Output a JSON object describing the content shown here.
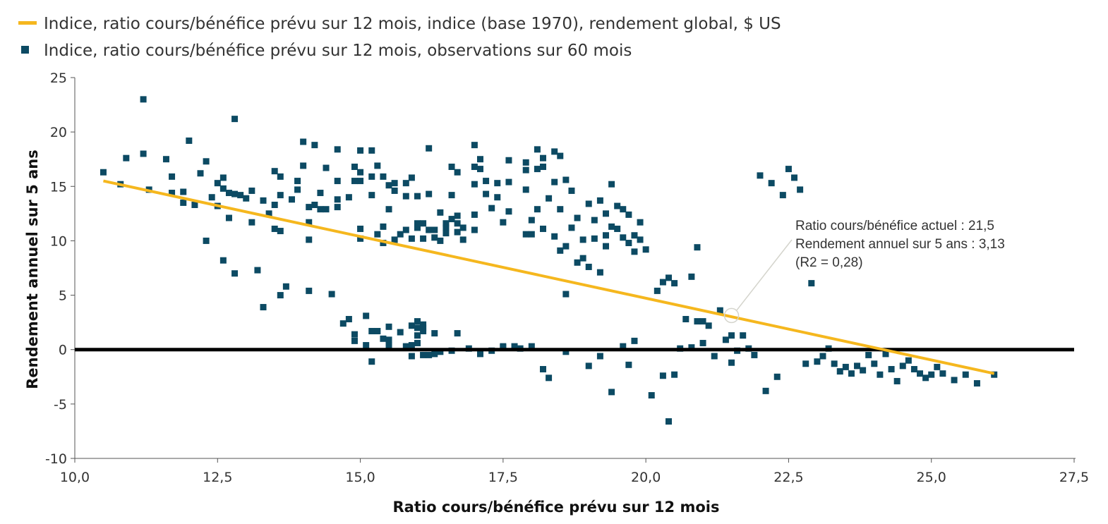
{
  "legend": {
    "line_label": "Indice, ratio cours/bénéfice prévu sur 12 mois, indice (base 1970), rendement global, $ US",
    "scatter_label": "Indice, ratio cours/bénéfice prévu sur 12 mois, observations sur 60 mois"
  },
  "annotation": {
    "line1": "Ratio cours/bénéfice actuel : 21,5",
    "line2": "Rendement annuel sur 5 ans : 3,13",
    "line3": "(R2 = 0,28)"
  },
  "colors": {
    "trend_line": "#F5B71E",
    "points": "#0C4A63",
    "zero_line": "#000000",
    "annotation_marker": "#d4d4cc"
  },
  "chart_data": {
    "type": "scatter",
    "xlabel": "Ratio cours/bénéfice prévu sur 12 mois",
    "ylabel": "Rendement annuel sur 5 ans",
    "xlim": [
      10,
      27.5
    ],
    "ylim": [
      -10,
      25
    ],
    "x_ticks": [
      {
        "value": 10,
        "label": "10,0"
      },
      {
        "value": 12.5,
        "label": "12,5"
      },
      {
        "value": 15,
        "label": "15,0"
      },
      {
        "value": 17.5,
        "label": "17,5"
      },
      {
        "value": 20,
        "label": "20,0"
      },
      {
        "value": 22.5,
        "label": "22,5"
      },
      {
        "value": 25,
        "label": "25,0"
      },
      {
        "value": 27.5,
        "label": "27,5"
      }
    ],
    "y_ticks": [
      {
        "value": 25,
        "label": "25"
      },
      {
        "value": 20,
        "label": "20"
      },
      {
        "value": 15,
        "label": "15"
      },
      {
        "value": 10,
        "label": "10"
      },
      {
        "value": 5,
        "label": "5"
      },
      {
        "value": 0,
        "label": "0"
      },
      {
        "value": -5,
        "label": "-5"
      },
      {
        "value": -10,
        "label": "-10"
      }
    ],
    "grid": false,
    "legend_position": "top-left",
    "reference_line_y": 0,
    "trend_line": {
      "x": [
        10.5,
        26.1
      ],
      "y": [
        15.5,
        -2.2
      ]
    },
    "highlight_point": {
      "x": 21.5,
      "y": 3.13
    },
    "points": [
      [
        10.5,
        16.3
      ],
      [
        10.8,
        15.2
      ],
      [
        10.9,
        17.6
      ],
      [
        11.2,
        23.0
      ],
      [
        11.2,
        18.0
      ],
      [
        11.3,
        14.7
      ],
      [
        11.6,
        17.5
      ],
      [
        11.7,
        15.9
      ],
      [
        11.7,
        14.4
      ],
      [
        11.9,
        14.5
      ],
      [
        11.9,
        13.5
      ],
      [
        12.0,
        19.2
      ],
      [
        12.1,
        13.3
      ],
      [
        12.2,
        16.2
      ],
      [
        12.3,
        17.3
      ],
      [
        12.3,
        10.0
      ],
      [
        12.4,
        14.0
      ],
      [
        12.5,
        15.3
      ],
      [
        12.5,
        13.2
      ],
      [
        12.6,
        15.8
      ],
      [
        12.6,
        14.8
      ],
      [
        12.7,
        14.4
      ],
      [
        12.7,
        12.1
      ],
      [
        12.6,
        8.2
      ],
      [
        12.8,
        14.3
      ],
      [
        12.8,
        7.0
      ],
      [
        12.8,
        21.2
      ],
      [
        12.9,
        14.2
      ],
      [
        13.0,
        13.9
      ],
      [
        13.1,
        11.7
      ],
      [
        13.1,
        14.6
      ],
      [
        13.2,
        7.3
      ],
      [
        13.3,
        3.9
      ],
      [
        13.3,
        13.7
      ],
      [
        13.4,
        12.5
      ],
      [
        13.5,
        16.4
      ],
      [
        13.5,
        13.3
      ],
      [
        13.5,
        11.1
      ],
      [
        13.6,
        15.9
      ],
      [
        13.6,
        14.2
      ],
      [
        13.6,
        10.9
      ],
      [
        13.6,
        5.0
      ],
      [
        13.7,
        5.8
      ],
      [
        13.8,
        13.8
      ],
      [
        13.9,
        15.5
      ],
      [
        13.9,
        14.7
      ],
      [
        14.0,
        19.1
      ],
      [
        14.0,
        16.9
      ],
      [
        14.1,
        13.1
      ],
      [
        14.1,
        11.7
      ],
      [
        14.1,
        10.1
      ],
      [
        14.1,
        5.4
      ],
      [
        14.2,
        18.8
      ],
      [
        14.2,
        13.3
      ],
      [
        14.3,
        14.4
      ],
      [
        14.3,
        12.9
      ],
      [
        14.4,
        16.7
      ],
      [
        14.4,
        12.9
      ],
      [
        14.5,
        5.1
      ],
      [
        14.6,
        18.4
      ],
      [
        14.6,
        15.5
      ],
      [
        14.6,
        13.8
      ],
      [
        14.6,
        13.1
      ],
      [
        14.7,
        2.4
      ],
      [
        14.8,
        14.0
      ],
      [
        14.8,
        2.8
      ],
      [
        14.9,
        16.8
      ],
      [
        14.9,
        15.5
      ],
      [
        14.9,
        1.4
      ],
      [
        14.9,
        0.8
      ],
      [
        15.0,
        18.3
      ],
      [
        15.0,
        16.3
      ],
      [
        15.0,
        15.5
      ],
      [
        15.0,
        11.1
      ],
      [
        15.0,
        10.2
      ],
      [
        15.1,
        3.1
      ],
      [
        15.1,
        0.4
      ],
      [
        15.2,
        18.3
      ],
      [
        15.2,
        15.9
      ],
      [
        15.2,
        14.2
      ],
      [
        15.2,
        1.7
      ],
      [
        15.2,
        -1.1
      ],
      [
        15.3,
        16.9
      ],
      [
        15.3,
        10.6
      ],
      [
        15.3,
        1.7
      ],
      [
        15.4,
        15.9
      ],
      [
        15.4,
        11.3
      ],
      [
        15.4,
        9.8
      ],
      [
        15.4,
        1.0
      ],
      [
        15.5,
        15.1
      ],
      [
        15.5,
        12.9
      ],
      [
        15.5,
        2.1
      ],
      [
        15.5,
        0.9
      ],
      [
        15.5,
        0.4
      ],
      [
        15.6,
        15.3
      ],
      [
        15.6,
        14.6
      ],
      [
        15.6,
        10.1
      ],
      [
        15.7,
        10.6
      ],
      [
        15.7,
        1.6
      ],
      [
        15.8,
        15.3
      ],
      [
        15.8,
        14.1
      ],
      [
        15.8,
        11.0
      ],
      [
        15.8,
        0.3
      ],
      [
        15.9,
        15.8
      ],
      [
        15.9,
        10.2
      ],
      [
        15.9,
        2.2
      ],
      [
        15.9,
        0.4
      ],
      [
        15.9,
        -0.6
      ],
      [
        16.0,
        14.1
      ],
      [
        16.0,
        11.2
      ],
      [
        16.0,
        11.6
      ],
      [
        16.0,
        2.6
      ],
      [
        16.0,
        2.0
      ],
      [
        16.0,
        1.3
      ],
      [
        16.0,
        0.6
      ],
      [
        16.1,
        11.6
      ],
      [
        16.1,
        10.2
      ],
      [
        16.1,
        2.3
      ],
      [
        16.1,
        2.0
      ],
      [
        16.1,
        1.7
      ],
      [
        16.1,
        -0.5
      ],
      [
        16.2,
        18.5
      ],
      [
        16.2,
        14.3
      ],
      [
        16.2,
        11.0
      ],
      [
        16.2,
        -0.5
      ],
      [
        16.3,
        11.0
      ],
      [
        16.3,
        10.3
      ],
      [
        16.3,
        1.5
      ],
      [
        16.3,
        -0.4
      ],
      [
        16.4,
        12.6
      ],
      [
        16.4,
        10.0
      ],
      [
        16.4,
        -0.2
      ],
      [
        16.5,
        11.6
      ],
      [
        16.5,
        11.2
      ],
      [
        16.5,
        10.7
      ],
      [
        16.6,
        16.8
      ],
      [
        16.6,
        14.2
      ],
      [
        16.6,
        12.0
      ],
      [
        16.6,
        -0.1
      ],
      [
        16.7,
        16.3
      ],
      [
        16.7,
        12.3
      ],
      [
        16.7,
        11.6
      ],
      [
        16.7,
        10.8
      ],
      [
        16.7,
        1.5
      ],
      [
        16.8,
        11.2
      ],
      [
        16.8,
        10.1
      ],
      [
        16.9,
        0.1
      ],
      [
        17.0,
        18.8
      ],
      [
        17.0,
        16.8
      ],
      [
        17.0,
        15.2
      ],
      [
        17.0,
        12.4
      ],
      [
        17.0,
        11.0
      ],
      [
        17.1,
        17.5
      ],
      [
        17.1,
        16.6
      ],
      [
        17.1,
        -0.4
      ],
      [
        17.2,
        15.5
      ],
      [
        17.2,
        14.3
      ],
      [
        17.3,
        13.0
      ],
      [
        17.3,
        -0.1
      ],
      [
        17.4,
        15.3
      ],
      [
        17.4,
        14.0
      ],
      [
        17.5,
        11.7
      ],
      [
        17.5,
        0.3
      ],
      [
        17.5,
        0.2
      ],
      [
        17.6,
        17.4
      ],
      [
        17.6,
        15.4
      ],
      [
        17.6,
        12.7
      ],
      [
        17.7,
        0.3
      ],
      [
        17.8,
        0.1
      ],
      [
        17.9,
        17.2
      ],
      [
        17.9,
        16.5
      ],
      [
        17.9,
        14.7
      ],
      [
        17.9,
        10.6
      ],
      [
        18.0,
        11.9
      ],
      [
        18.0,
        10.6
      ],
      [
        18.0,
        0.3
      ],
      [
        18.1,
        18.4
      ],
      [
        18.1,
        16.6
      ],
      [
        18.1,
        12.9
      ],
      [
        18.2,
        17.6
      ],
      [
        18.2,
        16.8
      ],
      [
        18.2,
        11.1
      ],
      [
        18.2,
        -1.8
      ],
      [
        18.3,
        13.9
      ],
      [
        18.3,
        -2.6
      ],
      [
        18.4,
        18.2
      ],
      [
        18.4,
        15.4
      ],
      [
        18.4,
        10.4
      ],
      [
        18.5,
        17.8
      ],
      [
        18.5,
        12.9
      ],
      [
        18.5,
        9.1
      ],
      [
        18.6,
        15.6
      ],
      [
        18.6,
        9.5
      ],
      [
        18.6,
        5.1
      ],
      [
        18.6,
        -0.2
      ],
      [
        18.7,
        14.6
      ],
      [
        18.7,
        11.2
      ],
      [
        18.8,
        12.1
      ],
      [
        18.8,
        8.0
      ],
      [
        18.9,
        10.1
      ],
      [
        18.9,
        8.4
      ],
      [
        19.0,
        13.4
      ],
      [
        19.0,
        7.6
      ],
      [
        19.0,
        -1.5
      ],
      [
        19.1,
        11.9
      ],
      [
        19.1,
        10.2
      ],
      [
        19.2,
        13.7
      ],
      [
        19.2,
        7.1
      ],
      [
        19.2,
        -0.6
      ],
      [
        19.3,
        12.5
      ],
      [
        19.3,
        10.5
      ],
      [
        19.3,
        9.5
      ],
      [
        19.4,
        15.2
      ],
      [
        19.4,
        11.3
      ],
      [
        19.4,
        -3.9
      ],
      [
        19.5,
        13.2
      ],
      [
        19.5,
        11.1
      ],
      [
        19.6,
        12.9
      ],
      [
        19.6,
        10.3
      ],
      [
        19.6,
        0.3
      ],
      [
        19.7,
        12.4
      ],
      [
        19.7,
        9.8
      ],
      [
        19.7,
        -1.4
      ],
      [
        19.8,
        10.5
      ],
      [
        19.8,
        9.0
      ],
      [
        19.8,
        0.8
      ],
      [
        19.9,
        11.7
      ],
      [
        19.9,
        10.1
      ],
      [
        20.0,
        9.2
      ],
      [
        20.1,
        -4.2
      ],
      [
        20.2,
        5.4
      ],
      [
        20.3,
        -2.4
      ],
      [
        20.3,
        6.2
      ],
      [
        20.4,
        -6.6
      ],
      [
        20.4,
        6.6
      ],
      [
        20.5,
        -2.3
      ],
      [
        20.5,
        6.1
      ],
      [
        20.6,
        0.1
      ],
      [
        20.7,
        2.8
      ],
      [
        20.8,
        0.2
      ],
      [
        20.8,
        6.7
      ],
      [
        20.9,
        2.6
      ],
      [
        20.9,
        9.4
      ],
      [
        21.0,
        0.6
      ],
      [
        21.0,
        2.6
      ],
      [
        21.1,
        2.2
      ],
      [
        21.2,
        -0.6
      ],
      [
        21.3,
        3.6
      ],
      [
        21.4,
        0.9
      ],
      [
        21.5,
        -1.2
      ],
      [
        21.5,
        1.3
      ],
      [
        21.6,
        -0.1
      ],
      [
        21.7,
        1.3
      ],
      [
        21.8,
        0.1
      ],
      [
        21.9,
        -0.5
      ],
      [
        22.0,
        16.0
      ],
      [
        22.1,
        -3.8
      ],
      [
        22.2,
        15.3
      ],
      [
        22.3,
        -2.5
      ],
      [
        22.4,
        14.2
      ],
      [
        22.5,
        16.6
      ],
      [
        22.6,
        15.8
      ],
      [
        22.7,
        14.7
      ],
      [
        22.8,
        -1.3
      ],
      [
        22.9,
        6.1
      ],
      [
        23.0,
        -1.1
      ],
      [
        23.1,
        -0.6
      ],
      [
        23.2,
        0.1
      ],
      [
        23.3,
        -1.3
      ],
      [
        23.4,
        -2.0
      ],
      [
        23.5,
        -1.6
      ],
      [
        23.6,
        -2.2
      ],
      [
        23.7,
        -1.5
      ],
      [
        23.8,
        -1.9
      ],
      [
        23.9,
        -0.5
      ],
      [
        24.0,
        -1.3
      ],
      [
        24.1,
        -2.3
      ],
      [
        24.2,
        -0.4
      ],
      [
        24.3,
        -1.8
      ],
      [
        24.4,
        -2.9
      ],
      [
        24.5,
        -1.5
      ],
      [
        24.6,
        -1.0
      ],
      [
        24.7,
        -1.8
      ],
      [
        24.8,
        -2.2
      ],
      [
        24.9,
        -2.6
      ],
      [
        25.0,
        -2.3
      ],
      [
        25.1,
        -1.6
      ],
      [
        25.2,
        -2.2
      ],
      [
        25.4,
        -2.8
      ],
      [
        25.6,
        -2.3
      ],
      [
        25.8,
        -3.1
      ],
      [
        26.1,
        -2.3
      ]
    ]
  }
}
